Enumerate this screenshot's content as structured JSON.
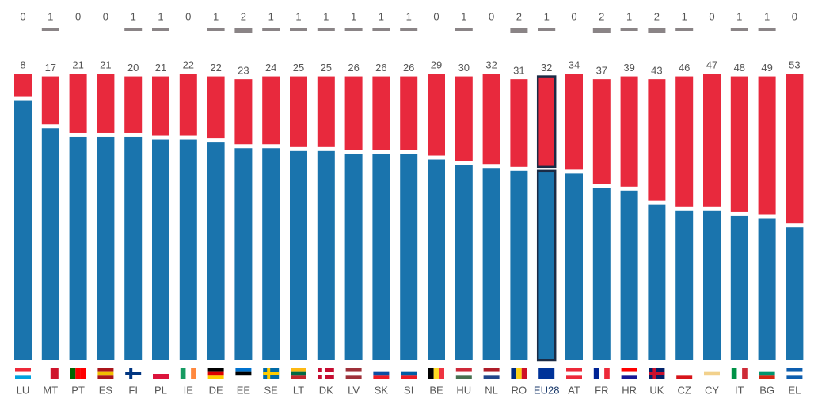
{
  "chart_data": {
    "type": "stacked-bar",
    "categories": [
      "LU",
      "MT",
      "PT",
      "ES",
      "FI",
      "PL",
      "IE",
      "DE",
      "EE",
      "SE",
      "LT",
      "DK",
      "LV",
      "SK",
      "SI",
      "BE",
      "HU",
      "NL",
      "RO",
      "EU28",
      "AT",
      "FR",
      "HR",
      "UK",
      "CZ",
      "CY",
      "IT",
      "BG",
      "EL"
    ],
    "highlight": "EU28",
    "series": [
      {
        "color": "#1a74ad",
        "values": [
          92,
          82,
          79,
          79,
          79,
          78,
          78,
          77,
          75,
          75,
          74,
          74,
          73,
          73,
          73,
          71,
          69,
          68,
          67,
          67,
          66,
          61,
          60,
          55,
          53,
          53,
          51,
          50,
          47
        ]
      },
      {
        "color": "#e8293d",
        "values": [
          8,
          17,
          21,
          21,
          20,
          21,
          22,
          22,
          23,
          24,
          25,
          25,
          26,
          26,
          26,
          29,
          30,
          32,
          31,
          32,
          34,
          37,
          39,
          43,
          46,
          47,
          48,
          49,
          53
        ]
      },
      {
        "color": "#8a8486",
        "values": [
          0,
          1,
          0,
          0,
          1,
          1,
          0,
          1,
          2,
          1,
          1,
          1,
          1,
          1,
          1,
          0,
          1,
          0,
          2,
          1,
          0,
          2,
          1,
          2,
          1,
          0,
          1,
          1,
          0
        ]
      }
    ]
  }
}
